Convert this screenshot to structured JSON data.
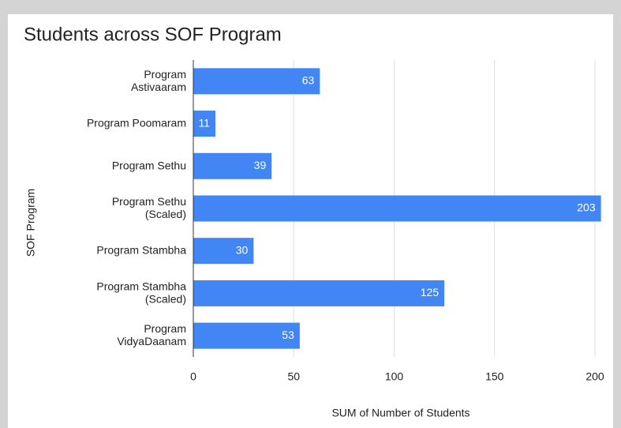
{
  "chart_data": {
    "type": "bar",
    "orientation": "horizontal",
    "title": "Students across SOF Program",
    "x_label": "SUM of Number of Students",
    "y_label": "SOF Program",
    "categories": [
      "Program Astivaaram",
      "Program Poomaram",
      "Program Sethu",
      "Program Sethu (Scaled)",
      "Program Stambha",
      "Program Stambha (Scaled)",
      "Program VidyaDaanam"
    ],
    "values": [
      63,
      11,
      39,
      203,
      30,
      125,
      53
    ],
    "color": "#4285f4",
    "xlim": [
      0,
      200
    ],
    "xticks": [
      0,
      50,
      100,
      150,
      200
    ],
    "grid": true
  }
}
